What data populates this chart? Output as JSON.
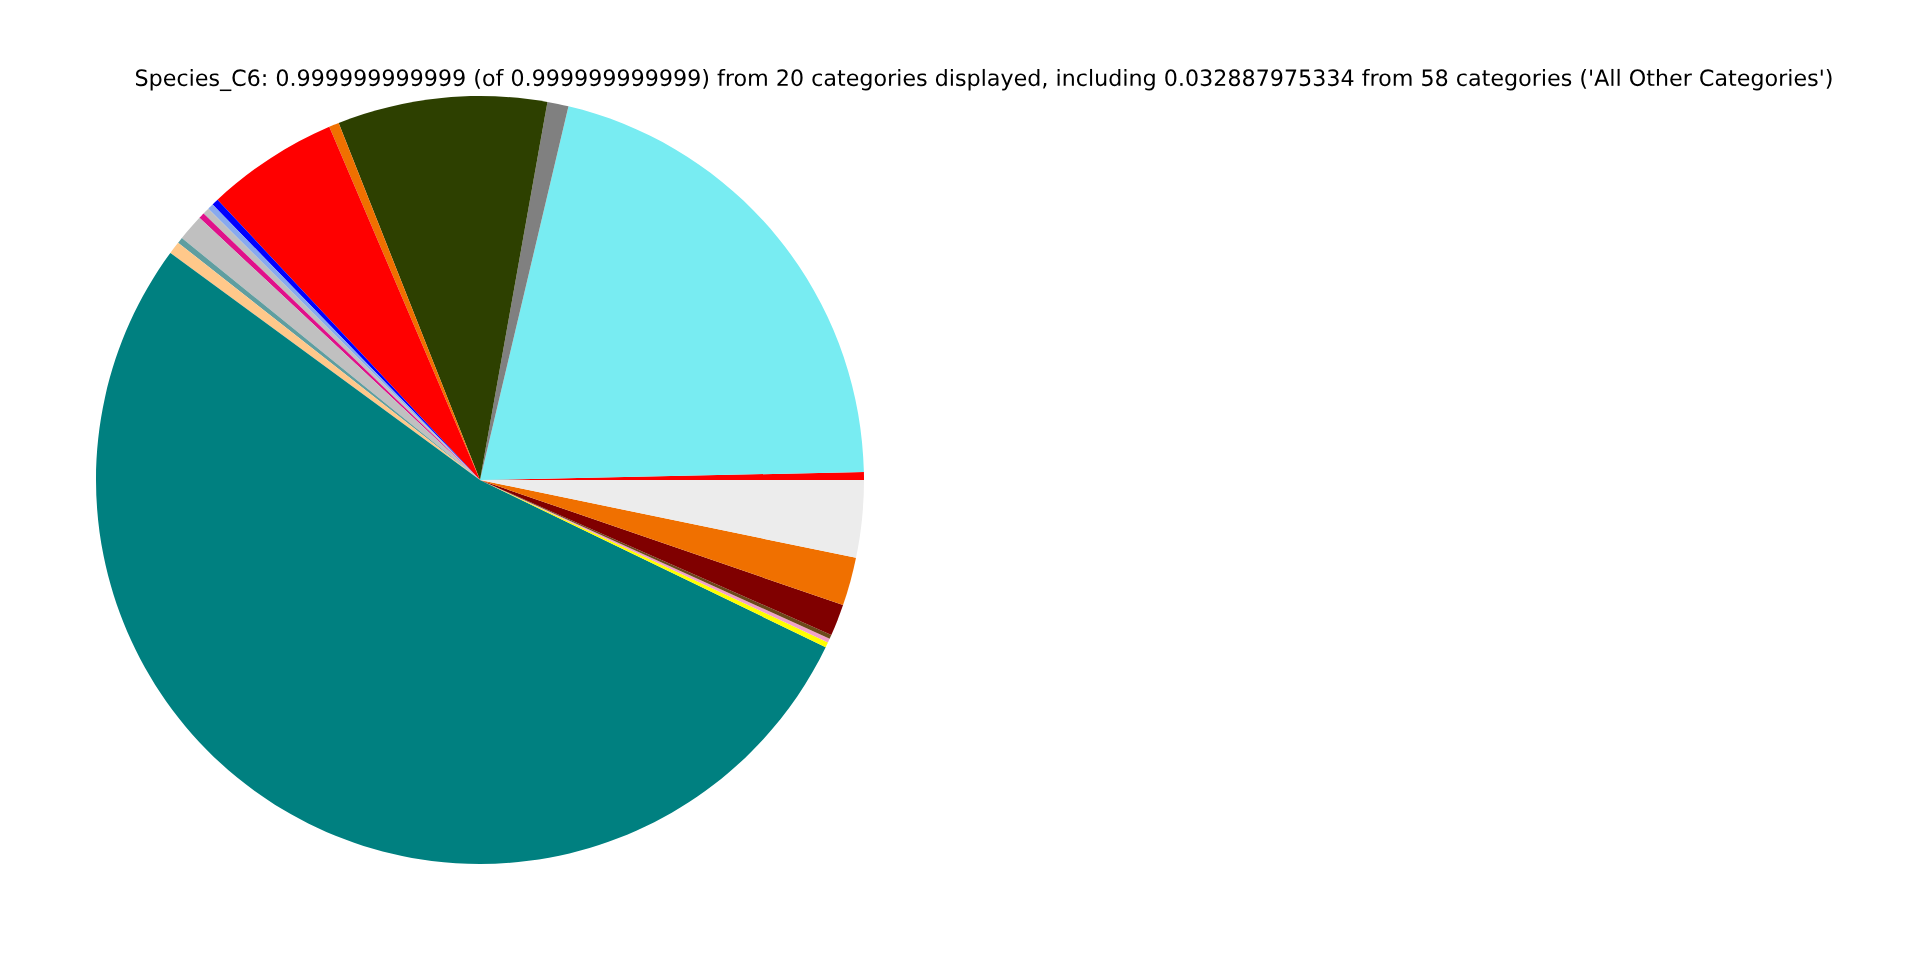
{
  "chart_data": {
    "type": "pie",
    "title": "Species_C6: 0.999999999999 (of 0.999999999999) from 20 categories displayed, including 0.032887975334 from 58 categories ('All Other Categories')",
    "categories": [
      null,
      null,
      null,
      null,
      null,
      null,
      null,
      null,
      null,
      null,
      null,
      null,
      null,
      null,
      null,
      null,
      null,
      null,
      null,
      null
    ],
    "values": [
      0.33,
      20.97,
      0.89,
      8.81,
      0.42,
      5.56,
      0.28,
      0.25,
      0.28,
      0.25,
      1.11,
      0.25,
      0.53,
      52.9,
      0.22,
      0.17,
      0.17,
      1.33,
      2.03,
      3.25
    ],
    "colors": [
      "#ff0000",
      "#78ecf2",
      "#808080",
      "#2d4000",
      "#f07000",
      "#ff0000",
      "#0000ff",
      "#88aaee",
      "#c0c0c0",
      "#e0108a",
      "#c0c0c0",
      "#5f9ea0",
      "#ffc88a",
      "#008080",
      "#ffff00",
      "#f0a0c8",
      "#6b4a1a",
      "#800000",
      "#f07000",
      "#ececec"
    ]
  }
}
